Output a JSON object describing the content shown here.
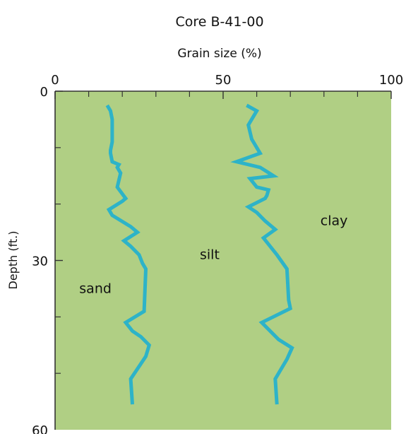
{
  "chart_data": {
    "type": "line",
    "title": "Core B-41-00",
    "xlabel": "Grain size (%)",
    "ylabel": "Depth (ft.)",
    "xlim": [
      0,
      100
    ],
    "ylim": [
      0,
      60
    ],
    "y_inverted": true,
    "x_tick_labels": [
      "0",
      "50",
      "100"
    ],
    "x_tick_values": [
      0,
      50,
      100
    ],
    "x_minor_ticks": [
      10,
      20,
      30,
      40,
      60,
      70,
      80,
      90
    ],
    "y_tick_labels": [
      "0",
      "30",
      "60"
    ],
    "y_tick_values": [
      0,
      30,
      60
    ],
    "y_minor_ticks": [
      10,
      20,
      40,
      50
    ],
    "background_color": "#b0cf84",
    "line_color": "#2db3c8",
    "region_labels": [
      {
        "text": "sand",
        "x": 12,
        "depth": 35
      },
      {
        "text": "silt",
        "x": 46,
        "depth": 29
      },
      {
        "text": "clay",
        "x": 83,
        "depth": 23
      }
    ],
    "series": [
      {
        "depth": [
          2.5,
          3.5,
          5,
          7,
          9,
          10.5,
          11,
          12.5,
          13,
          13.5,
          14.5,
          17,
          19,
          19.5,
          21,
          22,
          24,
          25,
          26.5,
          27.5,
          29,
          30.5,
          31.5,
          39,
          41,
          42.5,
          43.5,
          45,
          47,
          51,
          55.5
        ],
        "values": [
          15.5,
          16.5,
          17,
          17,
          17,
          16.5,
          16.5,
          17,
          19,
          18.5,
          19.5,
          18.5,
          21,
          20,
          16,
          17,
          22.5,
          24.5,
          20.5,
          22.5,
          25,
          26,
          27,
          26.5,
          21,
          23,
          25.5,
          28,
          27,
          22.5,
          23
        ]
      },
      {
        "depth": [
          2.5,
          3.5,
          6,
          8.5,
          11,
          12.5,
          13.5,
          15,
          15.5,
          17,
          17.5,
          18.5,
          19,
          20.5,
          21.5,
          23,
          24.5,
          26,
          27.5,
          29,
          31.5,
          37,
          38.5,
          41,
          44,
          45.5,
          47.5,
          51,
          55.5
        ],
        "values": [
          57,
          60,
          57.5,
          58.5,
          61,
          54,
          61,
          65,
          58,
          60,
          63.5,
          63,
          62.5,
          57.5,
          60,
          62.5,
          65.5,
          62,
          64,
          66,
          69,
          69.5,
          70,
          61.5,
          66.5,
          70.5,
          69,
          65.5,
          66
        ]
      }
    ]
  }
}
